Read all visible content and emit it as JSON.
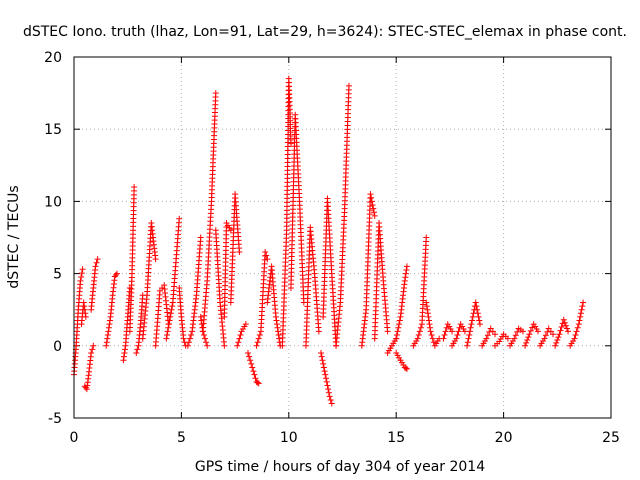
{
  "chart_data": {
    "type": "scatter",
    "title": "dSTEC Iono. truth (lhaz, Lon=91, Lat=29, h=3624): STEC-STEC_elemax in phase cont.",
    "xlabel": "GPS time / hours of day 304 of year 2014",
    "ylabel": "dSTEC  / TECUs",
    "xlim": [
      0,
      25
    ],
    "ylim": [
      -5,
      20
    ],
    "xticks": [
      0,
      5,
      10,
      15,
      20,
      25
    ],
    "yticks": [
      -5,
      0,
      5,
      10,
      15,
      20
    ],
    "grid": true,
    "marker": "plus",
    "color": "#ff0000",
    "arcs": [
      {
        "x": [
          0.0,
          0.1,
          0.2,
          0.3,
          0.4
        ],
        "y": [
          -2.0,
          0.0,
          2.5,
          4.5,
          5.3
        ]
      },
      {
        "x": [
          0.35,
          0.45,
          0.55
        ],
        "y": [
          1.5,
          3.0,
          2.0
        ]
      },
      {
        "x": [
          0.5,
          0.6,
          0.7,
          0.8,
          0.9
        ],
        "y": [
          -2.8,
          -3.0,
          -1.8,
          -0.5,
          0.0
        ]
      },
      {
        "x": [
          0.8,
          0.9,
          1.0,
          1.1
        ],
        "y": [
          2.5,
          4.0,
          5.5,
          6.0
        ]
      },
      {
        "x": [
          1.5,
          1.6,
          1.7,
          1.8,
          1.9,
          2.0
        ],
        "y": [
          0.0,
          1.0,
          2.0,
          3.5,
          4.8,
          5.0
        ]
      },
      {
        "x": [
          2.3,
          2.4,
          2.5,
          2.6
        ],
        "y": [
          -1.0,
          0.0,
          2.0,
          4.0
        ]
      },
      {
        "x": [
          2.6,
          2.7,
          2.8
        ],
        "y": [
          1.0,
          5.0,
          11.0
        ]
      },
      {
        "x": [
          2.9,
          3.0,
          3.1,
          3.2
        ],
        "y": [
          -0.5,
          0.0,
          1.5,
          3.5
        ]
      },
      {
        "x": [
          3.2,
          3.4,
          3.6,
          3.8
        ],
        "y": [
          0.5,
          3.5,
          8.5,
          6.0
        ]
      },
      {
        "x": [
          3.8,
          4.0,
          4.2,
          4.4
        ],
        "y": [
          0.0,
          3.8,
          4.2,
          1.5
        ]
      },
      {
        "x": [
          4.3,
          4.6,
          4.9
        ],
        "y": [
          0.5,
          3.0,
          8.8
        ]
      },
      {
        "x": [
          4.9,
          5.0,
          5.1,
          5.2
        ],
        "y": [
          4.0,
          2.0,
          0.5,
          0.0
        ]
      },
      {
        "x": [
          5.3,
          5.5,
          5.7,
          5.9
        ],
        "y": [
          0.0,
          1.0,
          3.5,
          7.5
        ]
      },
      {
        "x": [
          5.9,
          6.0,
          6.2
        ],
        "y": [
          2.0,
          1.0,
          0.0
        ]
      },
      {
        "x": [
          6.0,
          6.2,
          6.4,
          6.6
        ],
        "y": [
          1.0,
          4.5,
          10.0,
          17.5
        ]
      },
      {
        "x": [
          6.6,
          6.8,
          7.0
        ],
        "y": [
          8.0,
          3.0,
          0.0
        ]
      },
      {
        "x": [
          7.0,
          7.1,
          7.3
        ],
        "y": [
          2.0,
          8.5,
          8.0
        ]
      },
      {
        "x": [
          7.3,
          7.5,
          7.7
        ],
        "y": [
          3.0,
          10.5,
          6.5
        ]
      },
      {
        "x": [
          7.6,
          7.8,
          8.0
        ],
        "y": [
          0.0,
          1.0,
          1.5
        ]
      },
      {
        "x": [
          8.1,
          8.3,
          8.5,
          8.6
        ],
        "y": [
          -0.5,
          -1.5,
          -2.5,
          -2.6
        ]
      },
      {
        "x": [
          8.5,
          8.7,
          8.9,
          9.0
        ],
        "y": [
          0.0,
          1.0,
          6.5,
          6.0
        ]
      },
      {
        "x": [
          9.0,
          9.2,
          9.4,
          9.6
        ],
        "y": [
          3.0,
          5.5,
          2.0,
          0.0
        ]
      },
      {
        "x": [
          9.7,
          9.9,
          10.0,
          10.1
        ],
        "y": [
          0.0,
          8.0,
          18.5,
          14.0
        ]
      },
      {
        "x": [
          10.1,
          10.3,
          10.5,
          10.7
        ],
        "y": [
          4.0,
          16.0,
          10.0,
          3.0
        ]
      },
      {
        "x": [
          10.8,
          11.0,
          11.2,
          11.4
        ],
        "y": [
          0.0,
          8.2,
          5.0,
          1.0
        ]
      },
      {
        "x": [
          11.5,
          11.7,
          11.9,
          12.0
        ],
        "y": [
          -0.5,
          -2.0,
          -3.5,
          -4.0
        ]
      },
      {
        "x": [
          11.6,
          11.8,
          12.0,
          12.2
        ],
        "y": [
          2.0,
          10.2,
          5.0,
          0.0
        ]
      },
      {
        "x": [
          12.2,
          12.4,
          12.6,
          12.8
        ],
        "y": [
          0.0,
          3.0,
          9.5,
          18.0
        ]
      },
      {
        "x": [
          13.4,
          13.6,
          13.8,
          14.0
        ],
        "y": [
          0.0,
          2.5,
          10.5,
          9.0
        ]
      },
      {
        "x": [
          14.0,
          14.2,
          14.4,
          14.6
        ],
        "y": [
          0.5,
          8.5,
          4.5,
          1.0
        ]
      },
      {
        "x": [
          14.6,
          14.8,
          15.0
        ],
        "y": [
          -0.5,
          0.0,
          0.5
        ]
      },
      {
        "x": [
          15.0,
          15.2,
          15.4,
          15.5
        ],
        "y": [
          -0.5,
          -1.0,
          -1.5,
          -1.6
        ]
      },
      {
        "x": [
          15.0,
          15.2,
          15.4,
          15.5
        ],
        "y": [
          0.5,
          2.0,
          4.5,
          5.5
        ]
      },
      {
        "x": [
          15.8,
          16.0,
          16.2,
          16.4
        ],
        "y": [
          0.0,
          0.5,
          1.5,
          7.5
        ]
      },
      {
        "x": [
          16.4,
          16.6,
          16.8,
          17.0
        ],
        "y": [
          3.0,
          1.0,
          0.0,
          0.5
        ]
      },
      {
        "x": [
          17.2,
          17.4,
          17.6
        ],
        "y": [
          0.5,
          1.5,
          1.0
        ]
      },
      {
        "x": [
          17.6,
          17.8,
          18.0,
          18.2
        ],
        "y": [
          0.0,
          0.5,
          1.5,
          1.0
        ]
      },
      {
        "x": [
          18.3,
          18.5,
          18.7,
          18.9
        ],
        "y": [
          0.0,
          1.5,
          3.0,
          1.5
        ]
      },
      {
        "x": [
          19.0,
          19.2,
          19.4,
          19.6
        ],
        "y": [
          0.0,
          0.5,
          1.2,
          0.8
        ]
      },
      {
        "x": [
          19.6,
          19.8,
          20.0,
          20.2
        ],
        "y": [
          0.0,
          0.3,
          0.8,
          0.5
        ]
      },
      {
        "x": [
          20.3,
          20.5,
          20.7,
          20.9
        ],
        "y": [
          0.0,
          0.5,
          1.2,
          1.0
        ]
      },
      {
        "x": [
          21.0,
          21.2,
          21.4,
          21.6
        ],
        "y": [
          0.0,
          0.8,
          1.5,
          1.0
        ]
      },
      {
        "x": [
          21.7,
          21.9,
          22.1,
          22.3
        ],
        "y": [
          0.0,
          0.5,
          1.2,
          0.8
        ]
      },
      {
        "x": [
          22.4,
          22.6,
          22.8,
          23.0
        ],
        "y": [
          0.0,
          0.8,
          1.8,
          1.0
        ]
      },
      {
        "x": [
          23.1,
          23.3,
          23.5,
          23.7
        ],
        "y": [
          0.0,
          0.5,
          1.5,
          3.0
        ]
      }
    ]
  }
}
